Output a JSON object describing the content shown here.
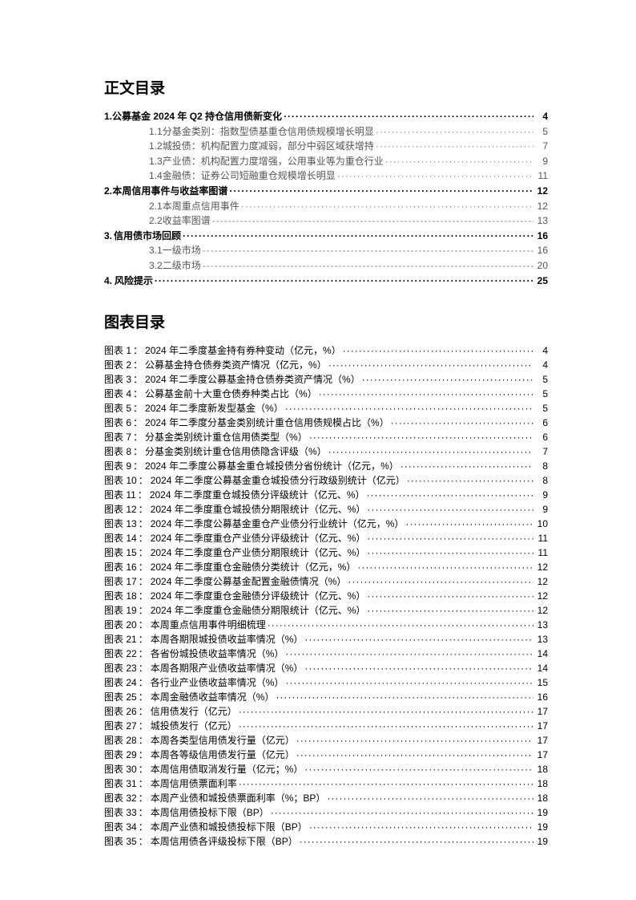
{
  "titles": {
    "toc": "正文目录",
    "figures": "图表目录"
  },
  "toc": [
    {
      "level": 1,
      "num": "1.",
      "text": "公募基金 2024 年 Q2 持仓信用债新变化",
      "page": "4"
    },
    {
      "level": 2,
      "num": "1.1",
      "text": "分基金类别：指数型债基重仓信用债规模增长明显",
      "page": "5"
    },
    {
      "level": 2,
      "num": "1.2",
      "text": "城投债：机构配置力度减弱，部分中弱区域获增持",
      "page": "7"
    },
    {
      "level": 2,
      "num": "1.3",
      "text": "产业债：机构配置力度增强，公用事业等为重仓行业",
      "page": "9"
    },
    {
      "level": 2,
      "num": "1.4",
      "text": "金融债：证券公司短融重仓规模增长明显",
      "page": "11"
    },
    {
      "level": 1,
      "num": "2.",
      "text": "本周信用事件与收益率图谱",
      "page": "12"
    },
    {
      "level": 2,
      "num": "2.1",
      "text": "本周重点信用事件",
      "page": "12"
    },
    {
      "level": 2,
      "num": "2.2",
      "text": "收益率图谱",
      "page": "13"
    },
    {
      "level": 1,
      "num": "3.",
      "text": "信用债市场回顾",
      "page": "16"
    },
    {
      "level": 2,
      "num": "3.1",
      "text": "一级市场",
      "page": "16"
    },
    {
      "level": 2,
      "num": "3.2",
      "text": "二级市场",
      "page": "20"
    },
    {
      "level": 1,
      "num": "4.",
      "text": "风险提示",
      "page": "25"
    }
  ],
  "figures": [
    {
      "n": "1",
      "text": "2024 年二季度基金持有券种变动（亿元，%）",
      "page": "4"
    },
    {
      "n": "2",
      "text": "公募基金持仓债券类资产情况（亿元，%）",
      "page": "4"
    },
    {
      "n": "3",
      "text": "2024 年二季度公募基金持仓债券类资产情况（%）",
      "page": "5"
    },
    {
      "n": "4",
      "text": "公募基金前十大重仓债券种类占比（%）",
      "page": "5"
    },
    {
      "n": "5",
      "text": "2024 年二季度新发型基金（%）",
      "page": "5"
    },
    {
      "n": "6",
      "text": "2024 年二季度分基金类别统计重仓信用债规模占比（%）",
      "page": "6"
    },
    {
      "n": "7",
      "text": "分基金类别统计重仓信用债类型（%）",
      "page": "6"
    },
    {
      "n": "8",
      "text": "分基金类别统计重仓信用债隐含评级（%）",
      "page": "7"
    },
    {
      "n": "9",
      "text": "2024 年二季度公募基金重仓城投债分省份统计（亿元，%）",
      "page": "8"
    },
    {
      "n": "10",
      "text": "2024 年二季度公募基金重仓城投债分行政级别统计（亿元）",
      "page": "8"
    },
    {
      "n": "11",
      "text": "2024 年二季度重仓城投债分评级统计（亿元、%）",
      "page": "9"
    },
    {
      "n": "12",
      "text": "2024 年二季度重仓城投债分期限统计（亿元、%）",
      "page": "9"
    },
    {
      "n": "13",
      "text": "2024 年二季度公募基金重仓产业债分行业统计（亿元，%）",
      "page": "10"
    },
    {
      "n": "14",
      "text": "2024 年二季度重仓产业债分评级统计（亿元、%）",
      "page": "11"
    },
    {
      "n": "15",
      "text": "2024 年二季度重仓产业债分期限统计（亿元、%）",
      "page": "11"
    },
    {
      "n": "16",
      "text": "2024 年二季度重仓金融债分类统计（亿元，%）",
      "page": "12"
    },
    {
      "n": "17",
      "text": "2024 年二季度公募基金配置金融债情况（%）",
      "page": "12"
    },
    {
      "n": "18",
      "text": "2024 年二季度重仓金融债分评级统计（亿元、%）",
      "page": "12"
    },
    {
      "n": "19",
      "text": "2024 年二季度重仓金融债分期限统计（亿元、%）",
      "page": "12"
    },
    {
      "n": "20",
      "text": "本周重点信用事件明细梳理",
      "page": "13"
    },
    {
      "n": "21",
      "text": "本周各期限城投债收益率情况（%）",
      "page": "13"
    },
    {
      "n": "22",
      "text": "各省份城投债收益率情况（%）",
      "page": "14"
    },
    {
      "n": "23",
      "text": "本周各期限产业债收益率情况（%）",
      "page": "14"
    },
    {
      "n": "24",
      "text": "各行业产业债收益率情况（%）",
      "page": "15"
    },
    {
      "n": "25",
      "text": "本周金融债收益率情况（%）",
      "page": "16"
    },
    {
      "n": "26",
      "text": "信用债发行（亿元）",
      "page": "17"
    },
    {
      "n": "27",
      "text": "城投债发行（亿元）",
      "page": "17"
    },
    {
      "n": "28",
      "text": "本周各类型信用债发行量（亿元）",
      "page": "17"
    },
    {
      "n": "29",
      "text": "本周各等级信用债发行量（亿元）",
      "page": "17"
    },
    {
      "n": "30",
      "text": "本周信用债取消发行量（亿元；%）",
      "page": "18"
    },
    {
      "n": "31",
      "text": "本周信用债票面利率",
      "page": "18"
    },
    {
      "n": "32",
      "text": "本周产业债和城投债票面利率（%；BP）",
      "page": "18"
    },
    {
      "n": "33",
      "text": "本周信用债投标下限（BP）",
      "page": "19"
    },
    {
      "n": "34",
      "text": "本周产业债和城投债投标下限（BP）",
      "page": "19"
    },
    {
      "n": "35",
      "text": "本周信用债各评级投标下限（BP）",
      "page": "19"
    }
  ],
  "labels": {
    "figurePrefix": "图表 "
  }
}
